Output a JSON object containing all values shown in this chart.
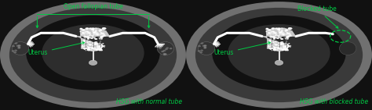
{
  "bg_color": "#111111",
  "outer_ellipse_color": "#888888",
  "mid_ellipse_color": "#555555",
  "inner_oval_color": "#1a1a1a",
  "body_oval_color": "#333333",
  "tube_color": "#ffffff",
  "uterus_fill": "#dddddd",
  "cervix_color": "#aaaaaa",
  "annotation_color": "#00cc44",
  "caption_left": "HSG with normal tube",
  "caption_right": "HSG with blocked tube",
  "label_left_tube": "Open fallopian tube",
  "label_left_uterus": "Uterus",
  "label_right_tube": "Blocked tube",
  "label_right_uterus": "Uterus",
  "font_size_label": 5.5,
  "font_size_caption": 5.5
}
